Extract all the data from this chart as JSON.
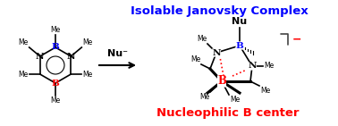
{
  "title_text": "Isolable Janovsky Complex",
  "title_color": "#0000FF",
  "title_fontsize": 9.5,
  "nucleophilic_text": "Nucleophilic B center",
  "nucleophilic_color": "#FF0000",
  "nucleophilic_fontsize": 9.5,
  "arrow_label": "Nu⁻",
  "background": "#FFFFFF",
  "blue_B": "#0000FF",
  "red_B": "#FF0000",
  "black": "#000000",
  "red_dotted": "#FF0000",
  "minus_color": "#FF0000"
}
